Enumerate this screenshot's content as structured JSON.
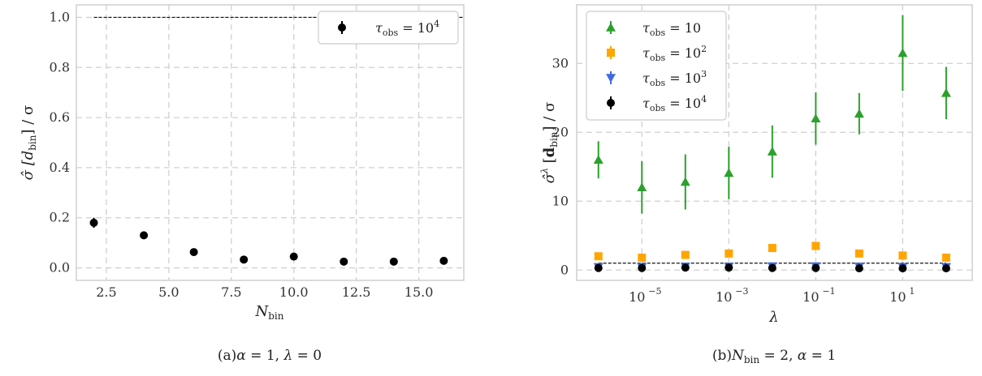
{
  "chart_data": [
    {
      "type": "scatter",
      "caption": "(a)α = 1, λ = 0",
      "xlabel": "N_bin",
      "ylabel": "σ̂ [d_bin] / σ",
      "xlim": [
        1.3,
        16.8
      ],
      "ylim": [
        -0.05,
        1.05
      ],
      "xticks": [
        2.5,
        5.0,
        7.5,
        10.0,
        12.5,
        15.0
      ],
      "xtick_labels": [
        "2.5",
        "5.0",
        "7.5",
        "10.0",
        "12.5",
        "15.0"
      ],
      "yticks": [
        0.0,
        0.2,
        0.4,
        0.6,
        0.8,
        1.0
      ],
      "ytick_labels": [
        "0.0",
        "0.2",
        "0.4",
        "0.6",
        "0.8",
        "1.0"
      ],
      "grid": true,
      "legend_position": "top-right",
      "reference_line": {
        "y": 1.0,
        "style": "dashed"
      },
      "series": [
        {
          "name": "τ_obs = 10^4",
          "marker": "circle",
          "color": "#000000",
          "x": [
            2,
            4,
            6,
            8,
            10,
            12,
            14,
            16
          ],
          "y": [
            0.18,
            0.13,
            0.063,
            0.033,
            0.045,
            0.025,
            0.025,
            0.028
          ],
          "yerr": [
            0.02,
            0.007,
            0.005,
            0.004,
            0.008,
            0.003,
            0.003,
            0.003
          ]
        }
      ]
    },
    {
      "type": "scatter",
      "caption": "(b)N_bin = 2, α = 1",
      "xlabel": "λ",
      "ylabel": "σ̂^λ [d_bin] / σ",
      "xscale": "log",
      "xlim_log10": [
        -6.5,
        2.6
      ],
      "ylim": [
        -1.5,
        38.5
      ],
      "xticks_log10": [
        -5,
        -3,
        -1,
        1
      ],
      "xtick_labels": [
        "10",
        "10",
        "10",
        "10"
      ],
      "xtick_exponents": [
        "−5",
        "−3",
        "−1",
        "1"
      ],
      "yticks": [
        0,
        10,
        20,
        30
      ],
      "ytick_labels": [
        "0",
        "10",
        "20",
        "30"
      ],
      "grid": true,
      "legend_position": "top-left",
      "reference_line": {
        "y": 1.0,
        "style": "dashed"
      },
      "series": [
        {
          "name": "τ_obs = 10",
          "marker": "triangle-up",
          "color": "#2ca02c",
          "x": [
            1e-06,
            1e-05,
            0.0001,
            0.001,
            0.01,
            0.1,
            1,
            10,
            100
          ],
          "y": [
            16.0,
            12.0,
            12.8,
            14.1,
            17.2,
            22.0,
            22.7,
            31.5,
            25.7
          ],
          "yerr": [
            2.7,
            3.8,
            4.0,
            3.8,
            3.8,
            3.8,
            3.0,
            5.5,
            3.8
          ]
        },
        {
          "name": "τ_obs = 10^2",
          "marker": "square",
          "color": "#ffa500",
          "x": [
            1e-06,
            1e-05,
            0.0001,
            0.001,
            0.01,
            0.1,
            1,
            10,
            100
          ],
          "y": [
            2.0,
            1.8,
            2.2,
            2.4,
            3.2,
            3.5,
            2.4,
            2.1,
            1.8
          ],
          "yerr": [
            0.2,
            0.2,
            0.2,
            0.2,
            0.3,
            0.3,
            0.2,
            0.2,
            0.2
          ]
        },
        {
          "name": "τ_obs = 10^3",
          "marker": "triangle-down",
          "color": "#4169e1",
          "x": [
            1e-06,
            1e-05,
            0.0001,
            0.001,
            0.01,
            0.1,
            1,
            10,
            100
          ],
          "y": [
            0.45,
            0.45,
            0.5,
            0.5,
            0.55,
            0.55,
            0.5,
            0.45,
            0.45
          ],
          "yerr": [
            0.05,
            0.05,
            0.05,
            0.05,
            0.05,
            0.05,
            0.05,
            0.05,
            0.05
          ]
        },
        {
          "name": "τ_obs = 10^4",
          "marker": "circle",
          "color": "#000000",
          "x": [
            1e-06,
            1e-05,
            0.0001,
            0.001,
            0.01,
            0.1,
            1,
            10,
            100
          ],
          "y": [
            0.3,
            0.3,
            0.35,
            0.35,
            0.3,
            0.3,
            0.25,
            0.25,
            0.25
          ],
          "yerr": [
            0.03,
            0.03,
            0.03,
            0.03,
            0.03,
            0.03,
            0.03,
            0.03,
            0.03
          ]
        }
      ]
    }
  ]
}
